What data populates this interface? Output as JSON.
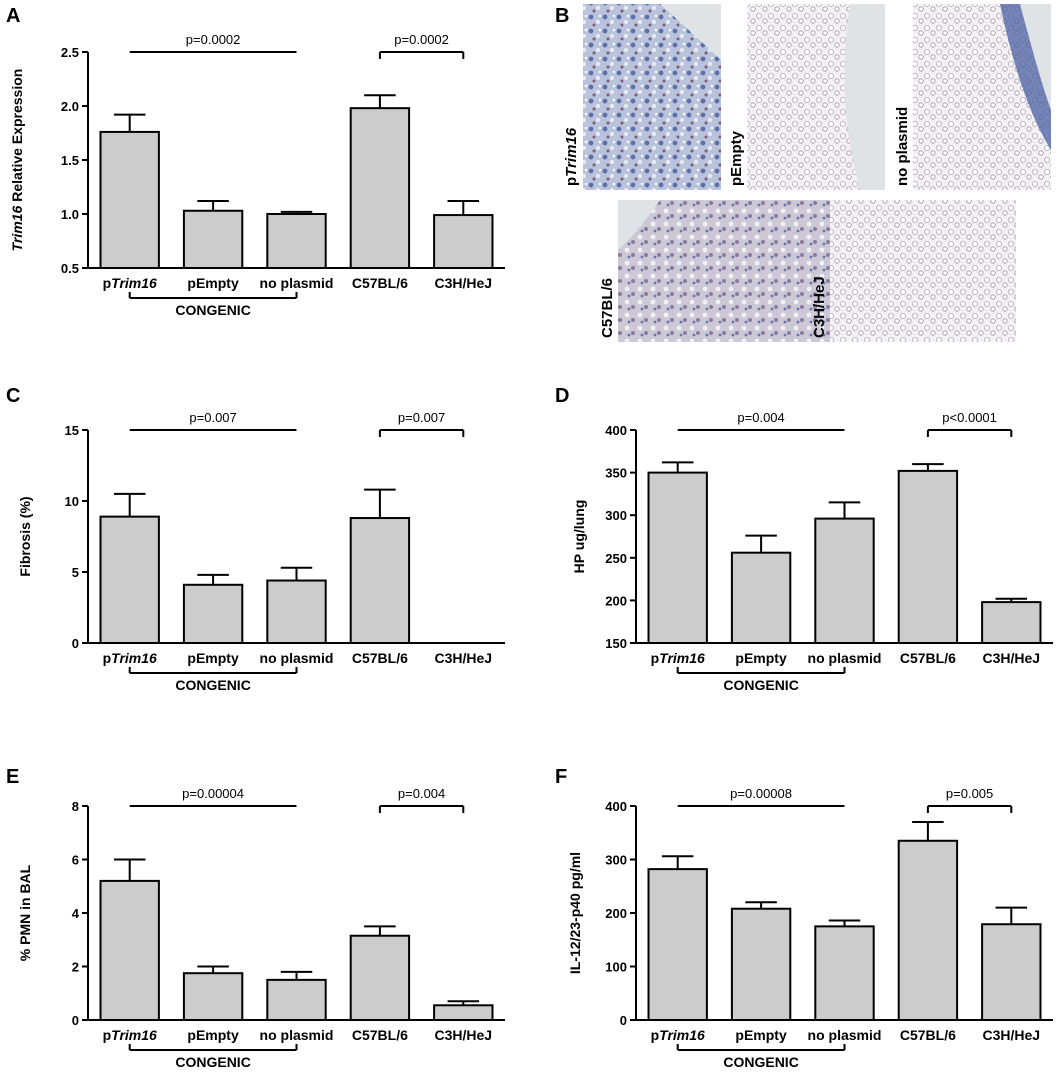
{
  "chart_data": [
    {
      "panel": "A",
      "type": "bar",
      "ylabel_italic": "Trim16",
      "ylabel_rest": " Relative Expression",
      "ylim": [
        0.5,
        2.5
      ],
      "yticks": [
        "0.5",
        "1.0",
        "1.5",
        "2.0",
        "2.5"
      ],
      "categories": [
        {
          "prefix": "p",
          "italic": "Trim16"
        },
        {
          "prefix": "pEmpty",
          "italic": ""
        },
        {
          "prefix": "no plasmid",
          "italic": ""
        },
        {
          "prefix": "C57BL/6",
          "italic": ""
        },
        {
          "prefix": "C3H/HeJ",
          "italic": ""
        }
      ],
      "values": [
        1.76,
        1.03,
        1.0,
        1.98,
        0.99
      ],
      "errors": [
        0.16,
        0.09,
        0.02,
        0.12,
        0.13
      ],
      "comparisons": [
        "p=0.0002",
        "p=0.0002"
      ],
      "group_label": "CONGENIC",
      "color": "#cccccc"
    },
    {
      "panel": "C",
      "type": "bar",
      "ylabel_italic": "",
      "ylabel_rest": "Fibrosis (%)",
      "ylim": [
        0,
        15
      ],
      "yticks": [
        "0",
        "5",
        "10",
        "15"
      ],
      "categories": [
        {
          "prefix": "p",
          "italic": "Trim16"
        },
        {
          "prefix": "pEmpty",
          "italic": ""
        },
        {
          "prefix": "no plasmid",
          "italic": ""
        },
        {
          "prefix": "C57BL/6",
          "italic": ""
        },
        {
          "prefix": "C3H/HeJ",
          "italic": ""
        }
      ],
      "values": [
        8.9,
        4.1,
        4.4,
        8.8,
        0
      ],
      "errors": [
        1.6,
        0.7,
        0.9,
        2.0,
        0
      ],
      "comparisons": [
        "p=0.007",
        "p=0.007"
      ],
      "group_label": "CONGENIC",
      "color": "#cccccc"
    },
    {
      "panel": "D",
      "type": "bar",
      "ylabel_italic": "",
      "ylabel_rest": "HP ug/lung",
      "ylim": [
        150,
        400
      ],
      "yticks": [
        "150",
        "200",
        "250",
        "300",
        "350",
        "400"
      ],
      "categories": [
        {
          "prefix": "p",
          "italic": "Trim16"
        },
        {
          "prefix": "pEmpty",
          "italic": ""
        },
        {
          "prefix": "no plasmid",
          "italic": ""
        },
        {
          "prefix": "C57BL/6",
          "italic": ""
        },
        {
          "prefix": "C3H/HeJ",
          "italic": ""
        }
      ],
      "values": [
        350,
        256,
        296,
        352,
        198
      ],
      "errors": [
        12,
        20,
        19,
        8,
        4
      ],
      "comparisons": [
        "p=0.004",
        "p<0.0001"
      ],
      "group_label": "CONGENIC",
      "color": "#cccccc"
    },
    {
      "panel": "E",
      "type": "bar",
      "ylabel_italic": "",
      "ylabel_rest": "% PMN in BAL",
      "ylim": [
        0,
        8
      ],
      "yticks": [
        "0",
        "2",
        "4",
        "6",
        "8"
      ],
      "categories": [
        {
          "prefix": "p",
          "italic": "Trim16"
        },
        {
          "prefix": "pEmpty",
          "italic": ""
        },
        {
          "prefix": "no plasmid",
          "italic": ""
        },
        {
          "prefix": "C57BL/6",
          "italic": ""
        },
        {
          "prefix": "C3H/HeJ",
          "italic": ""
        }
      ],
      "values": [
        5.2,
        1.75,
        1.5,
        3.15,
        0.55
      ],
      "errors": [
        0.8,
        0.25,
        0.3,
        0.35,
        0.15
      ],
      "comparisons": [
        "p=0.00004",
        "p=0.004"
      ],
      "group_label": "CONGENIC",
      "color": "#cccccc"
    },
    {
      "panel": "F",
      "type": "bar",
      "ylabel_italic": "",
      "ylabel_rest": "IL-12/23-p40 pg/ml",
      "ylim": [
        0,
        400
      ],
      "yticks": [
        "0",
        "100",
        "200",
        "300",
        "400"
      ],
      "categories": [
        {
          "prefix": "p",
          "italic": "Trim16"
        },
        {
          "prefix": "pEmpty",
          "italic": ""
        },
        {
          "prefix": "no plasmid",
          "italic": ""
        },
        {
          "prefix": "C57BL/6",
          "italic": ""
        },
        {
          "prefix": "C3H/HeJ",
          "italic": ""
        }
      ],
      "values": [
        282,
        208,
        175,
        335,
        179
      ],
      "errors": [
        24,
        12,
        11,
        35,
        31
      ],
      "comparisons": [
        "p=0.00008",
        "p=0.005"
      ],
      "group_label": "CONGENIC",
      "color": "#cccccc"
    }
  ],
  "panel_b": {
    "letter": "B",
    "images": [
      {
        "label_prefix": "p",
        "label_italic": "Trim16",
        "tint": "blue"
      },
      {
        "label_prefix": "pEmpty",
        "label_italic": "",
        "tint": "light"
      },
      {
        "label_prefix": "no plasmid",
        "label_italic": "",
        "tint": "blue-edge"
      },
      {
        "label_prefix": "C57BL/6",
        "label_italic": "",
        "tint": "mixed"
      },
      {
        "label_prefix": "C3H/HeJ",
        "label_italic": "",
        "tint": "light"
      }
    ]
  }
}
